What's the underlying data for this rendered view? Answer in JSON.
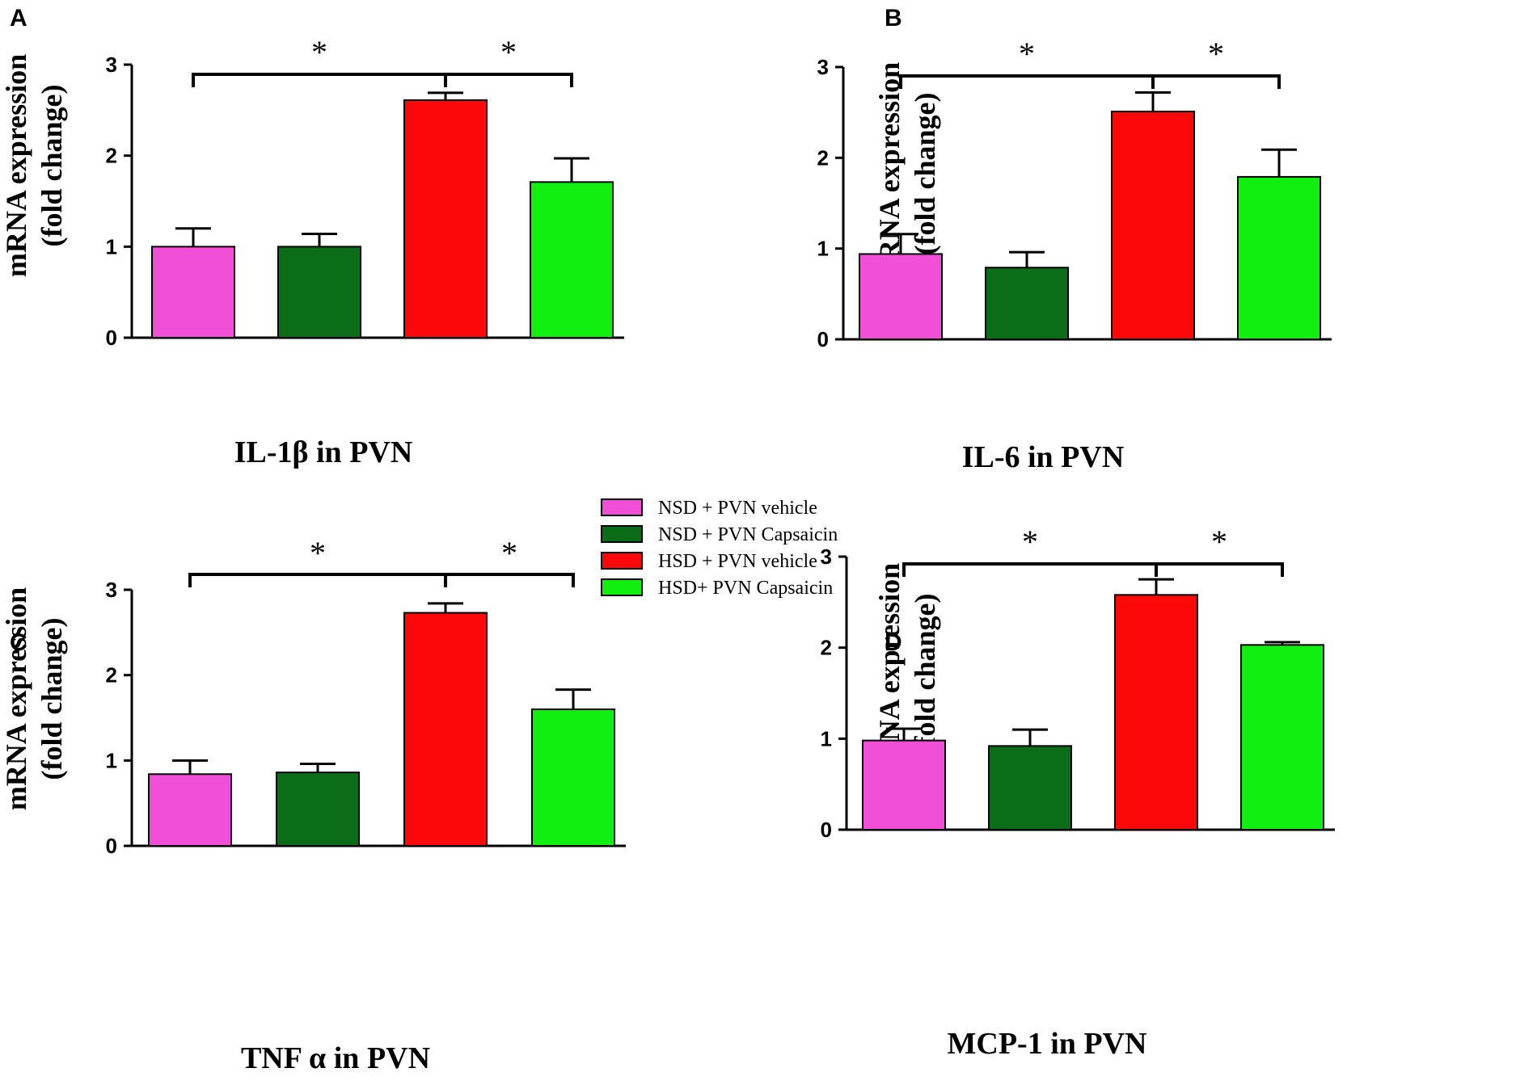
{
  "legend": [
    {
      "label": "NSD + PVN vehicle",
      "color": "#f24fd8"
    },
    {
      "label": "NSD + PVN Capsaicin",
      "color": "#0b6d18"
    },
    {
      "label": "HSD + PVN vehicle",
      "color": "#fb0808"
    },
    {
      "label": "HSD+  PVN Capsaicin",
      "color": "#10ef10"
    }
  ],
  "chart_data": [
    {
      "panel": "A",
      "type": "bar",
      "title": "",
      "xlabel": "IL-1β in PVN",
      "ylabel": [
        "mRNA expression",
        "(fold change)"
      ],
      "ylim": [
        0,
        3
      ],
      "yticks": [
        "0",
        "1",
        "2",
        "3"
      ],
      "categories": [
        "NSD + PVN vehicle",
        "NSD + PVN Capsaicin",
        "HSD + PVN vehicle",
        "HSD+  PVN Capsaicin"
      ],
      "values": [
        1.0,
        1.0,
        2.61,
        1.71
      ],
      "errors": [
        0.2,
        0.14,
        0.08,
        0.26
      ],
      "significance": [
        {
          "from": 0,
          "to": 2,
          "label": "*"
        },
        {
          "from": 2,
          "to": 3,
          "label": "*"
        }
      ]
    },
    {
      "panel": "B",
      "type": "bar",
      "title": "",
      "xlabel": "IL-6 in PVN",
      "ylabel": [
        "mRNA expression",
        "(fold change)"
      ],
      "ylim": [
        0,
        3
      ],
      "yticks": [
        "0",
        "1",
        "2",
        "3"
      ],
      "categories": [
        "NSD + PVN vehicle",
        "NSD + PVN Capsaicin",
        "HSD + PVN vehicle",
        "HSD+  PVN Capsaicin"
      ],
      "values": [
        0.94,
        0.79,
        2.51,
        1.79
      ],
      "errors": [
        0.22,
        0.17,
        0.21,
        0.3
      ],
      "significance": [
        {
          "from": 0,
          "to": 2,
          "label": "*"
        },
        {
          "from": 2,
          "to": 3,
          "label": "*"
        }
      ]
    },
    {
      "panel": "C",
      "type": "bar",
      "title": "",
      "xlabel": "TNF α in PVN",
      "ylabel": [
        "mRNA expression",
        "(fold change)"
      ],
      "ylim": [
        0,
        3
      ],
      "yticks": [
        "0",
        "1",
        "2",
        "3"
      ],
      "categories": [
        "NSD + PVN vehicle",
        "NSD + PVN Capsaicin",
        "HSD + PVN vehicle",
        "HSD+  PVN Capsaicin"
      ],
      "values": [
        0.84,
        0.86,
        2.73,
        1.6
      ],
      "errors": [
        0.16,
        0.1,
        0.11,
        0.23
      ],
      "significance": [
        {
          "from": 0,
          "to": 2,
          "label": "*"
        },
        {
          "from": 2,
          "to": 3,
          "label": "*"
        }
      ]
    },
    {
      "panel": "D",
      "type": "bar",
      "title": "",
      "xlabel": "MCP-1 in PVN",
      "ylabel": [
        "mRNA expression",
        "(fold change)"
      ],
      "ylim": [
        0,
        3
      ],
      "yticks": [
        "0",
        "1",
        "2",
        "3"
      ],
      "categories": [
        "NSD + PVN vehicle",
        "NSD + PVN Capsaicin",
        "HSD + PVN vehicle",
        "HSD+  PVN Capsaicin"
      ],
      "values": [
        0.98,
        0.92,
        2.58,
        2.03
      ],
      "errors": [
        0.13,
        0.18,
        0.17,
        0.03
      ],
      "significance": [
        {
          "from": 0,
          "to": 2,
          "label": "*"
        },
        {
          "from": 2,
          "to": 3,
          "label": "*"
        }
      ]
    }
  ]
}
